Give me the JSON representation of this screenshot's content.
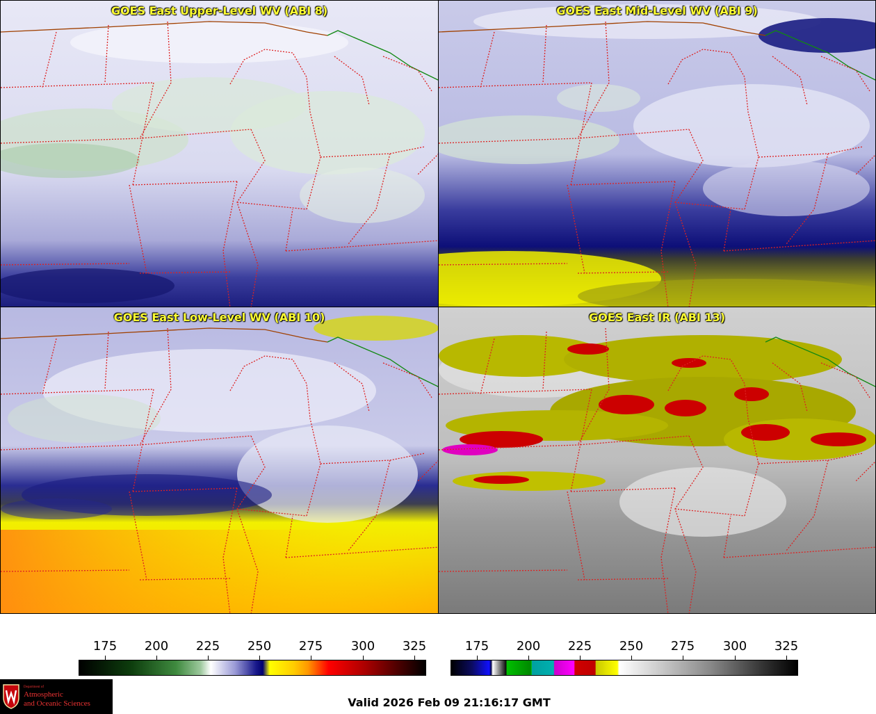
{
  "panels": [
    {
      "title": "GOES East Upper-Level WV (ABI 8)"
    },
    {
      "title": "GOES East Mid-Level WV (ABI 9)"
    },
    {
      "title": "GOES East Low-Level WV (ABI 10)"
    },
    {
      "title": "GOES East IR (ABI 13)"
    }
  ],
  "colorbar_wv": {
    "ticks": [
      "175",
      "200",
      "225",
      "250",
      "275",
      "300",
      "325"
    ],
    "colors": [
      "#000000",
      "#0d3d0d",
      "#3f8a3f",
      "#9cc89c",
      "#ffffff",
      "#9a9ad6",
      "#1a1a8c",
      "#000070",
      "#ffff00",
      "#ffcc00",
      "#ff9900",
      "#ff0000",
      "#b00000",
      "#600000",
      "#000000"
    ]
  },
  "colorbar_ir": {
    "ticks": [
      "175",
      "200",
      "225",
      "250",
      "275",
      "300",
      "325"
    ]
  },
  "logo": {
    "line1": "Department of",
    "line2": "Atmospheric",
    "line3": "and Oceanic Sciences"
  },
  "valid_time": "Valid 2026 Feb 09 21:16:17 GMT"
}
